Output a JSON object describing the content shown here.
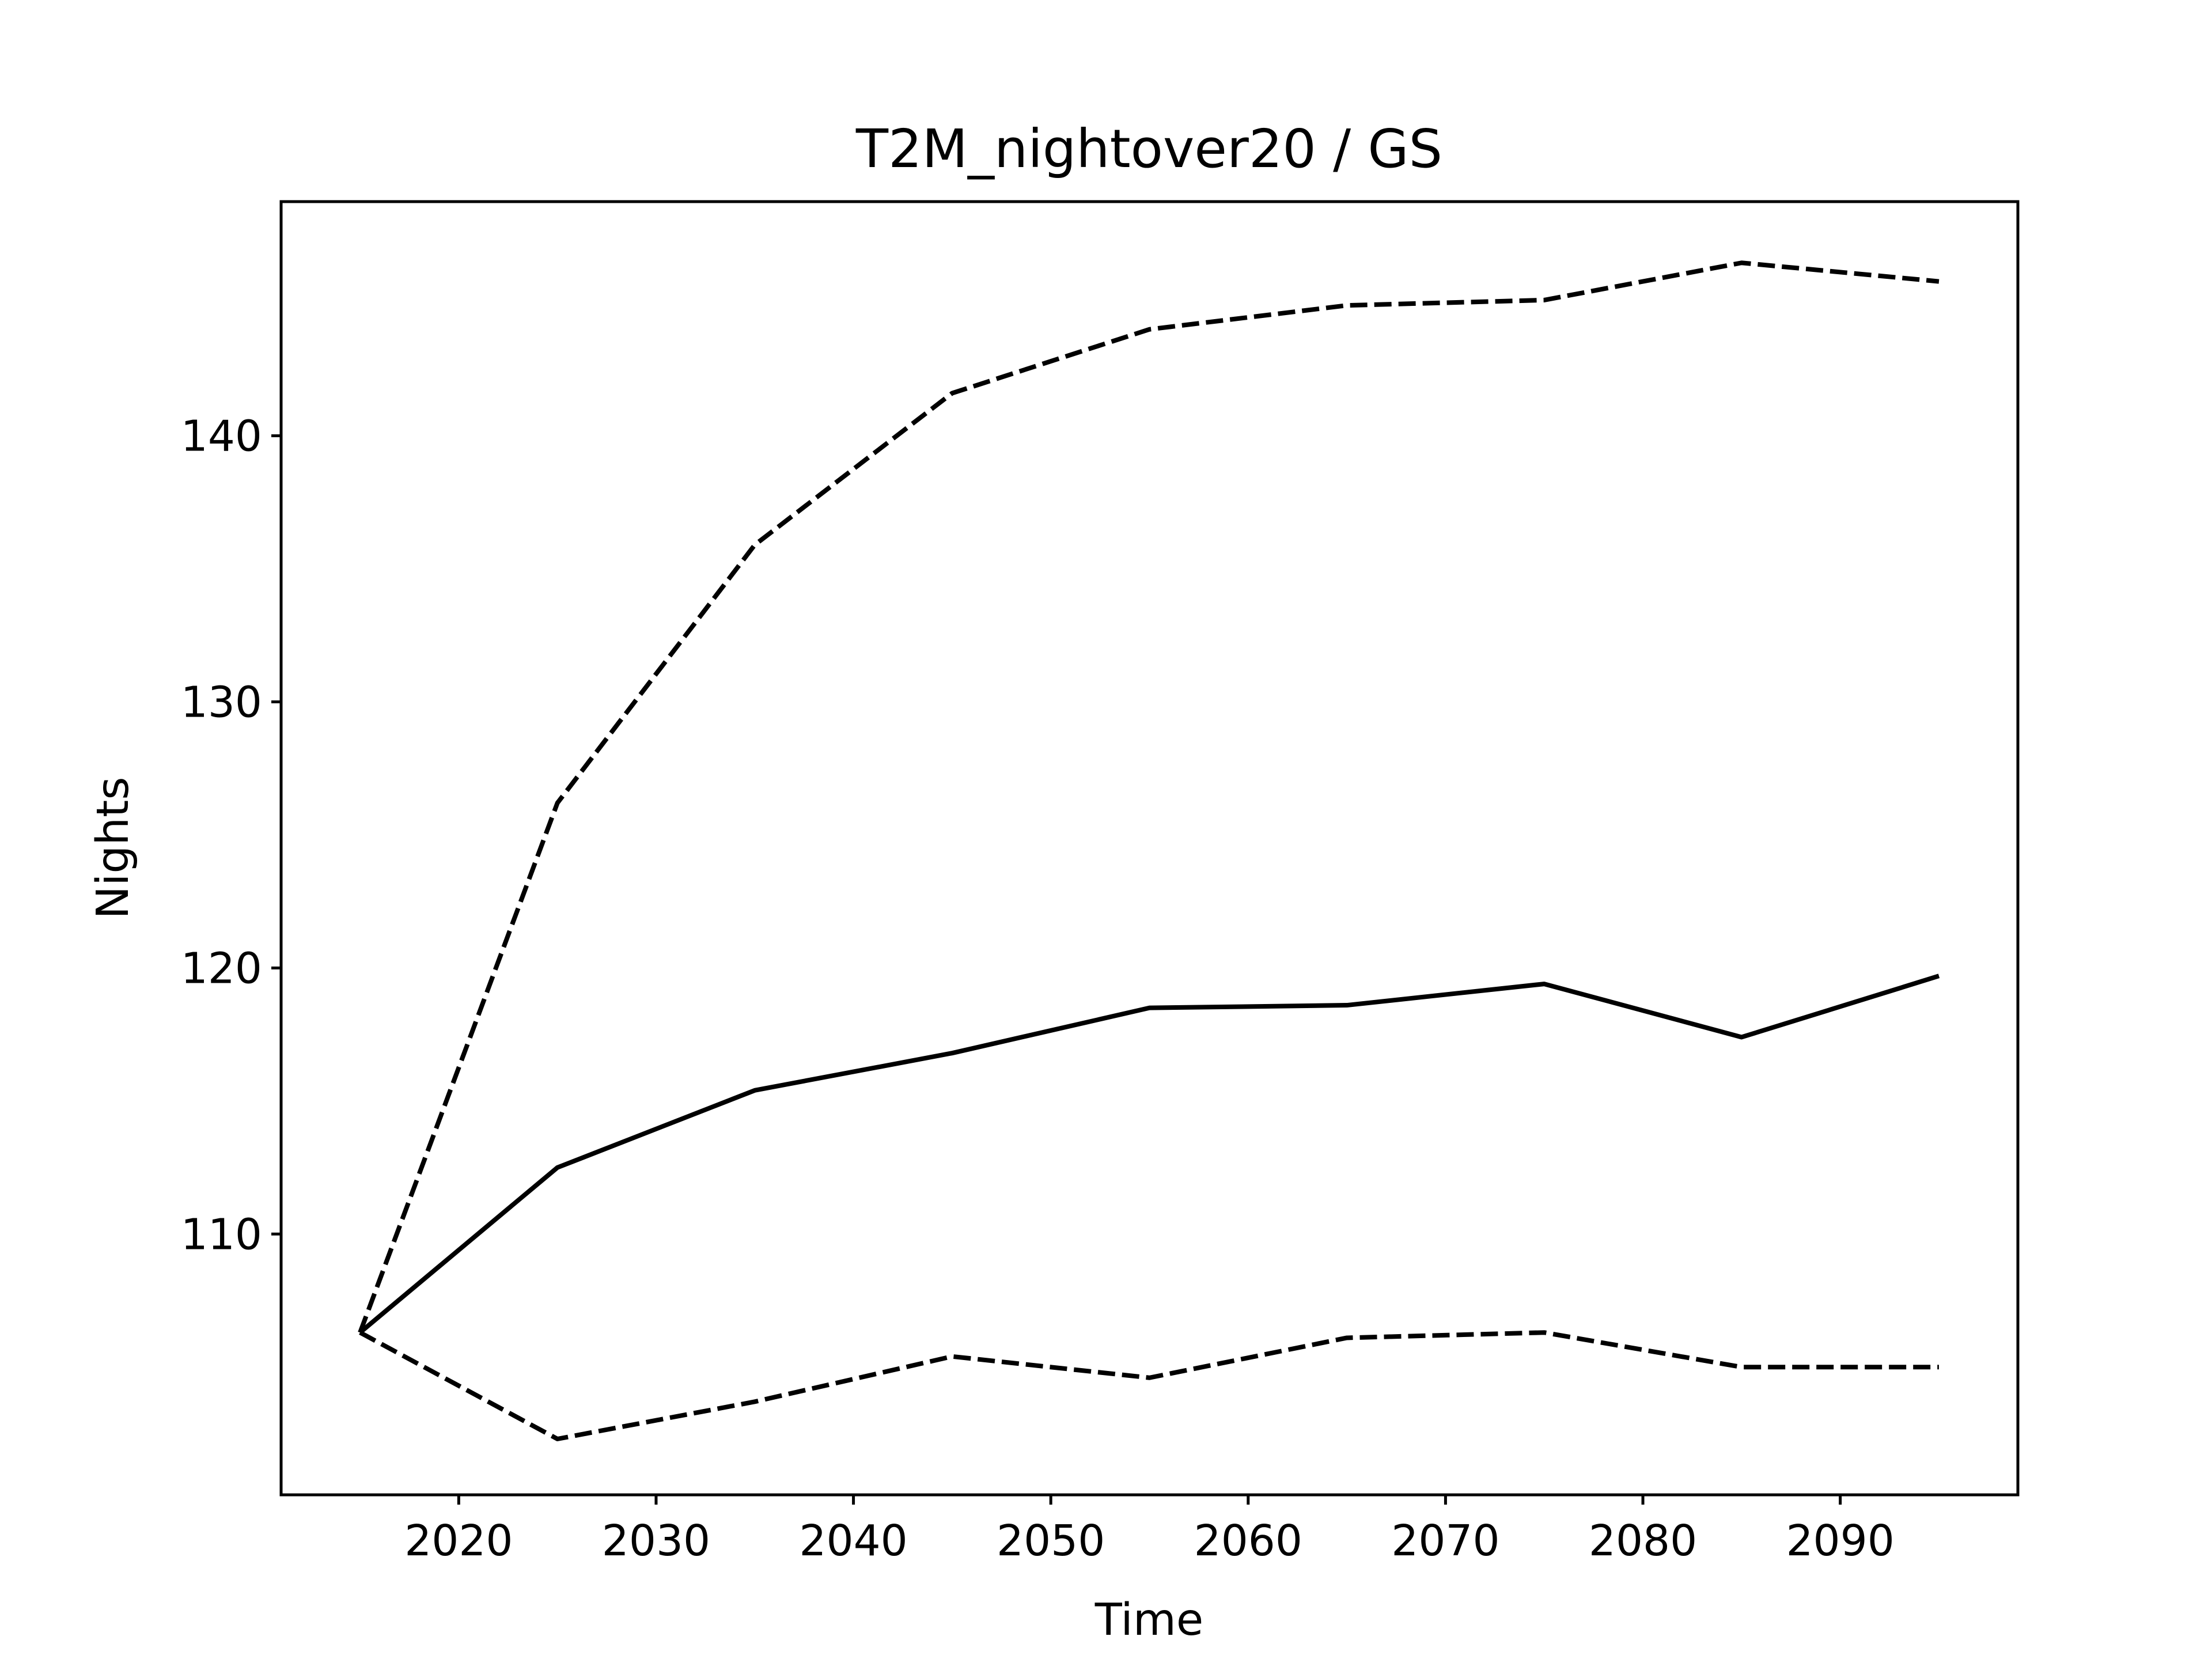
{
  "chart_data": {
    "type": "line",
    "title": "T2M_nightover20 / GS",
    "xlabel": "Time",
    "ylabel": "Nights",
    "xlim": [
      2011,
      2099
    ],
    "ylim": [
      100.2,
      148.8
    ],
    "xticks": [
      2020,
      2030,
      2040,
      2050,
      2060,
      2070,
      2080,
      2090
    ],
    "yticks": [
      110,
      120,
      130,
      140
    ],
    "grid": false,
    "legend": "none",
    "x": [
      2015,
      2025,
      2035,
      2045,
      2055,
      2065,
      2075,
      2085,
      2095
    ],
    "series": [
      {
        "style": "solid",
        "color": "#000000",
        "values": [
          106.3,
          112.5,
          115.4,
          116.8,
          118.5,
          118.6,
          119.4,
          117.4,
          119.7
        ]
      },
      {
        "style": "dashed",
        "color": "#000000",
        "values": [
          106.3,
          126.2,
          135.9,
          141.6,
          144.0,
          144.9,
          145.1,
          146.5,
          145.8
        ]
      },
      {
        "style": "dashed",
        "color": "#000000",
        "values": [
          106.3,
          102.3,
          103.7,
          105.4,
          104.6,
          106.1,
          106.3,
          105.0,
          105.0
        ]
      }
    ]
  }
}
